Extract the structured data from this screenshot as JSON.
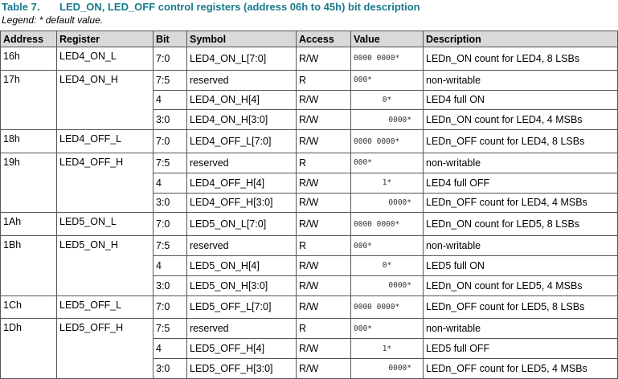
{
  "title": {
    "label": "Table 7.",
    "text": "LED_ON, LED_OFF control registers (address 06h to 45h) bit description"
  },
  "legend": "Legend: * default value.",
  "table": {
    "headers": [
      "Address",
      "Register",
      "Bit",
      "Symbol",
      "Access",
      "Value",
      "Description"
    ],
    "groups": [
      {
        "address": "16h",
        "register": "LED4_ON_L",
        "rows": [
          [
            "7:0",
            "LED4_ON_L[7:0]",
            "R/W",
            "0000 0000*",
            "LEDn_ON count for LED4, 8 LSBs"
          ]
        ]
      },
      {
        "address": "17h",
        "register": "LED4_ON_H",
        "rows": [
          [
            "7:5",
            "reserved",
            "R",
            "000*",
            "non-writable"
          ],
          [
            "4",
            "LED4_ON_H[4]",
            "R/W",
            "0*",
            "LED4 full ON"
          ],
          [
            "3:0",
            "LED4_ON_H[3:0]",
            "R/W",
            "0000*",
            "LEDn_ON count for LED4, 4 MSBs"
          ]
        ]
      },
      {
        "address": "18h",
        "register": "LED4_OFF_L",
        "rows": [
          [
            "7:0",
            "LED4_OFF_L[7:0]",
            "R/W",
            "0000 0000*",
            "LEDn_OFF count for LED4, 8 LSBs"
          ]
        ]
      },
      {
        "address": "19h",
        "register": "LED4_OFF_H",
        "rows": [
          [
            "7:5",
            "reserved",
            "R",
            "000*",
            "non-writable"
          ],
          [
            "4",
            "LED4_OFF_H[4]",
            "R/W",
            "1*",
            "LED4 full OFF"
          ],
          [
            "3:0",
            "LED4_OFF_H[3:0]",
            "R/W",
            "0000*",
            "LEDn_OFF count for LED4, 4 MSBs"
          ]
        ]
      },
      {
        "address": "1Ah",
        "register": "LED5_ON_L",
        "rows": [
          [
            "7:0",
            "LED5_ON_L[7:0]",
            "R/W",
            "0000 0000*",
            "LEDn_ON count for LED5, 8 LSBs"
          ]
        ]
      },
      {
        "address": "1Bh",
        "register": "LED5_ON_H",
        "rows": [
          [
            "7:5",
            "reserved",
            "R",
            "000*",
            "non-writable"
          ],
          [
            "4",
            "LED5_ON_H[4]",
            "R/W",
            "0*",
            "LED5 full ON"
          ],
          [
            "3:0",
            "LED5_ON_H[3:0]",
            "R/W",
            "0000*",
            "LEDn_ON count for LED5, 4 MSBs"
          ]
        ]
      },
      {
        "address": "1Ch",
        "register": "LED5_OFF_L",
        "rows": [
          [
            "7:0",
            "LED5_OFF_L[7:0]",
            "R/W",
            "0000 0000*",
            "LEDn_OFF count for LED5, 8 LSBs"
          ]
        ]
      },
      {
        "address": "1Dh",
        "register": "LED5_OFF_H",
        "rows": [
          [
            "7:5",
            "reserved",
            "R",
            "000*",
            "non-writable"
          ],
          [
            "4",
            "LED5_OFF_H[4]",
            "R/W",
            "1*",
            "LED5 full OFF"
          ],
          [
            "3:0",
            "LED5_OFF_H[3:0]",
            "R/W",
            "0000*",
            "LEDn_OFF count for LED5, 4 MSBs"
          ]
        ]
      }
    ]
  }
}
